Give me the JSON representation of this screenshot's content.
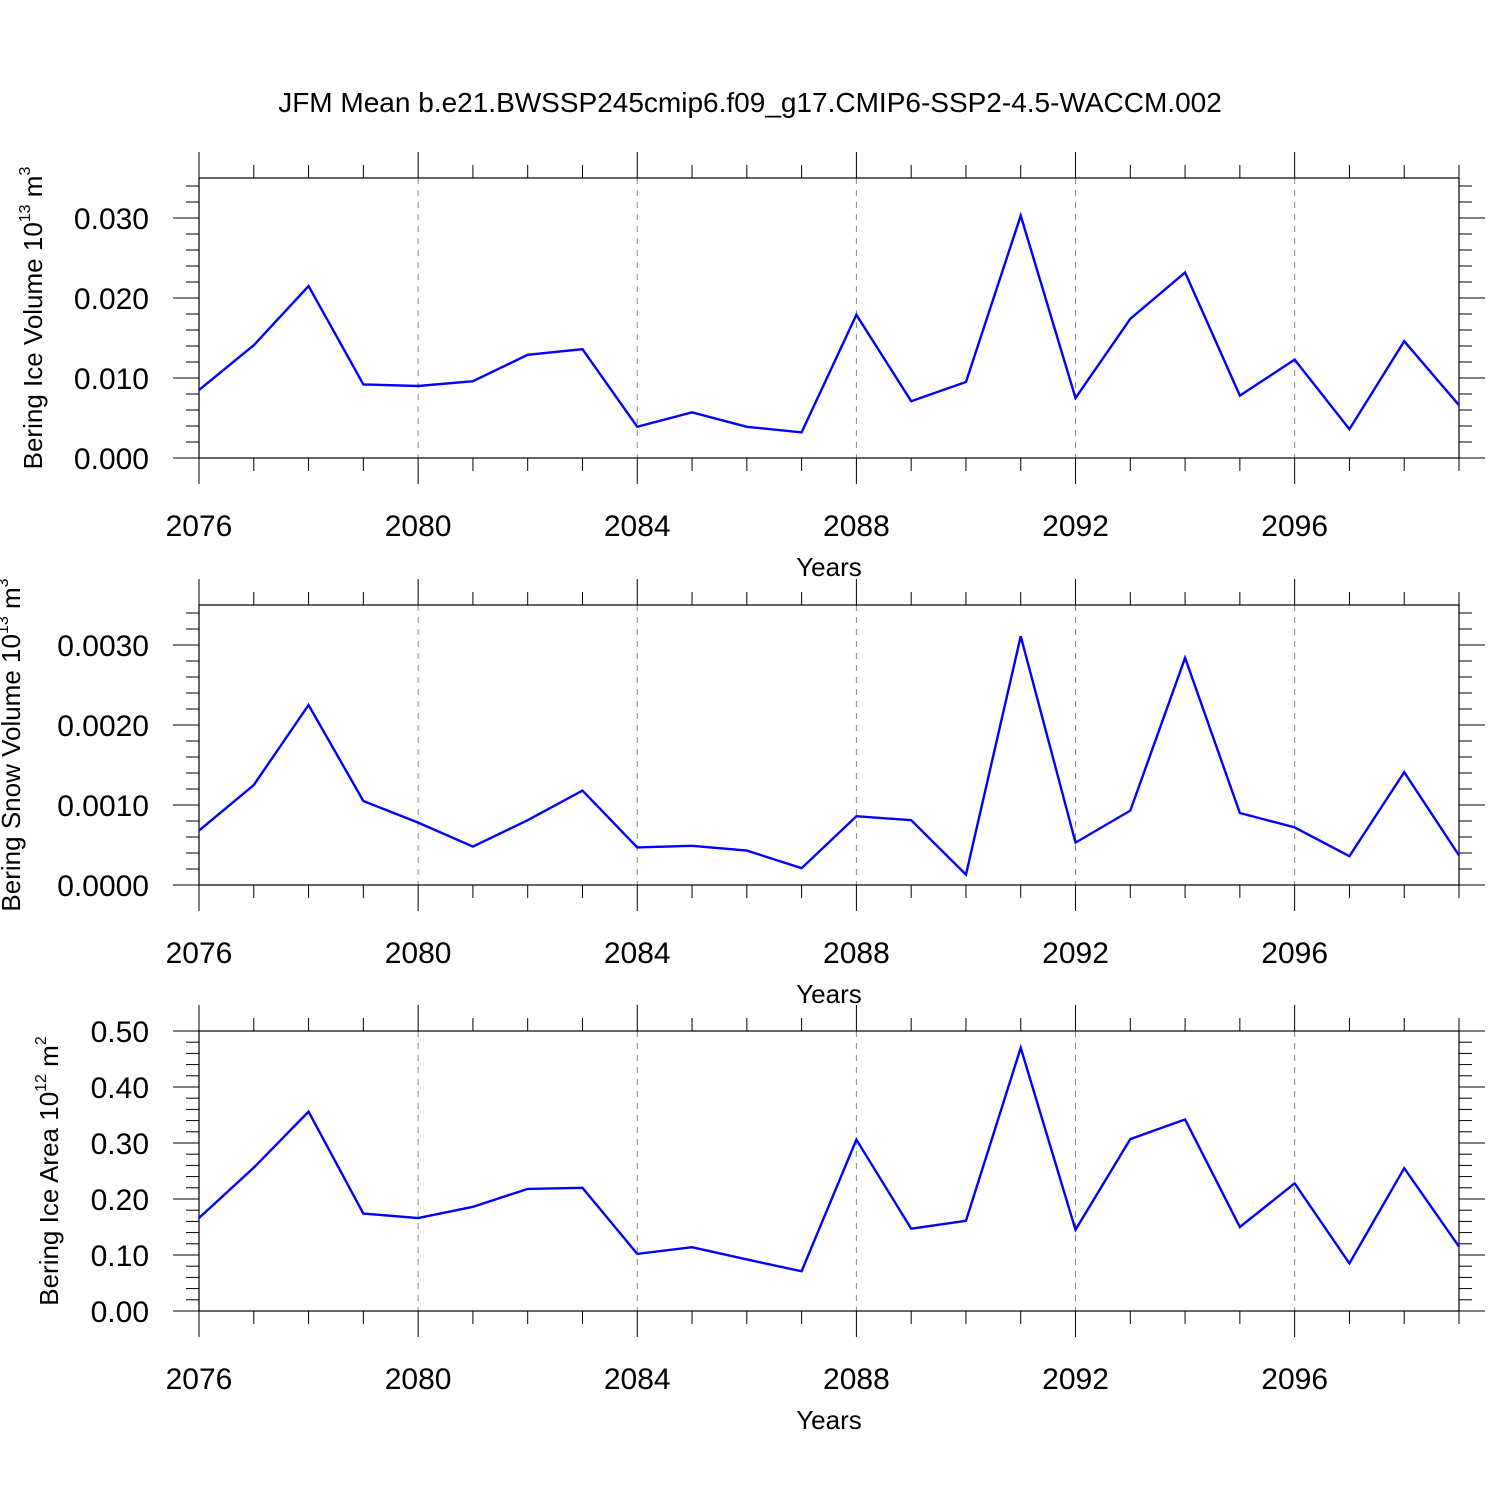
{
  "figure": {
    "title": "JFM Mean b.e21.BWSSP245cmip6.f09_g17.CMIP6-SSP2-4.5-WACCM.002"
  },
  "colors": {
    "series": "#0000ff",
    "axes": "#000000",
    "grid": "#888888"
  },
  "chart_data": [
    {
      "type": "line",
      "title": "",
      "xlabel": "Years",
      "ylabel": "Bering Ice Volume 10",
      "ylabel_exp": "13",
      "ylabel_unit": "m",
      "ylabel_unit_exp": "3",
      "xlim": [
        2076,
        2099
      ],
      "ylim": [
        0,
        0.035
      ],
      "xticks": [
        2076,
        2080,
        2084,
        2088,
        2092,
        2096
      ],
      "xtick_labels": [
        "2076",
        "2080",
        "2084",
        "2088",
        "2092",
        "2096"
      ],
      "yticks": [
        0,
        0.01,
        0.02,
        0.03
      ],
      "ytick_labels": [
        "0.000",
        "0.010",
        "0.020",
        "0.030"
      ],
      "grid": "vertical dashed at major x ticks",
      "x": [
        2076,
        2077,
        2078,
        2079,
        2080,
        2081,
        2082,
        2083,
        2084,
        2085,
        2086,
        2087,
        2088,
        2089,
        2090,
        2091,
        2092,
        2093,
        2094,
        2095,
        2096,
        2097,
        2098,
        2099
      ],
      "series": [
        {
          "values": [
            0.0085,
            0.0141,
            0.0215,
            0.0092,
            0.009,
            0.0096,
            0.0129,
            0.0136,
            0.0039,
            0.0057,
            0.0039,
            0.0032,
            0.0179,
            0.0071,
            0.0095,
            0.0303,
            0.0075,
            0.0174,
            0.0232,
            0.0078,
            0.0123,
            0.0036,
            0.0146,
            0.0066
          ]
        }
      ]
    },
    {
      "type": "line",
      "title": "",
      "xlabel": "Years",
      "ylabel": "Bering Snow Volume 10",
      "ylabel_exp": "13",
      "ylabel_unit": "m",
      "ylabel_unit_exp": "3",
      "xlim": [
        2076,
        2099
      ],
      "ylim": [
        0,
        0.0035
      ],
      "xticks": [
        2076,
        2080,
        2084,
        2088,
        2092,
        2096
      ],
      "xtick_labels": [
        "2076",
        "2080",
        "2084",
        "2088",
        "2092",
        "2096"
      ],
      "yticks": [
        0,
        0.001,
        0.002,
        0.003
      ],
      "ytick_labels": [
        "0.0000",
        "0.0010",
        "0.0020",
        "0.0030"
      ],
      "grid": "vertical dashed at major x ticks",
      "x": [
        2076,
        2077,
        2078,
        2079,
        2080,
        2081,
        2082,
        2083,
        2084,
        2085,
        2086,
        2087,
        2088,
        2089,
        2090,
        2091,
        2092,
        2093,
        2094,
        2095,
        2096,
        2097,
        2098,
        2099
      ],
      "series": [
        {
          "values": [
            0.00068,
            0.00125,
            0.00225,
            0.00105,
            0.00078,
            0.00048,
            0.00081,
            0.00118,
            0.00047,
            0.00049,
            0.00043,
            0.00021,
            0.00086,
            0.00081,
            0.00013,
            0.00311,
            0.00053,
            0.00093,
            0.00284,
            0.0009,
            0.00072,
            0.00036,
            0.00141,
            0.00037
          ]
        }
      ]
    },
    {
      "type": "line",
      "title": "",
      "xlabel": "Years",
      "ylabel": "Bering Ice Area 10",
      "ylabel_exp": "12",
      "ylabel_unit": "m",
      "ylabel_unit_exp": "2",
      "xlim": [
        2076,
        2099
      ],
      "ylim": [
        0,
        0.5
      ],
      "xticks": [
        2076,
        2080,
        2084,
        2088,
        2092,
        2096
      ],
      "xtick_labels": [
        "2076",
        "2080",
        "2084",
        "2088",
        "2092",
        "2096"
      ],
      "yticks": [
        0,
        0.1,
        0.2,
        0.3,
        0.4,
        0.5
      ],
      "ytick_labels": [
        "0.00",
        "0.10",
        "0.20",
        "0.30",
        "0.40",
        "0.50"
      ],
      "grid": "vertical dashed at major x ticks",
      "x": [
        2076,
        2077,
        2078,
        2079,
        2080,
        2081,
        2082,
        2083,
        2084,
        2085,
        2086,
        2087,
        2088,
        2089,
        2090,
        2091,
        2092,
        2093,
        2094,
        2095,
        2096,
        2097,
        2098,
        2099
      ],
      "series": [
        {
          "values": [
            0.166,
            0.256,
            0.356,
            0.174,
            0.166,
            0.186,
            0.218,
            0.22,
            0.102,
            0.114,
            0.092,
            0.071,
            0.306,
            0.147,
            0.161,
            0.47,
            0.145,
            0.307,
            0.342,
            0.15,
            0.228,
            0.085,
            0.255,
            0.115
          ]
        }
      ]
    }
  ]
}
